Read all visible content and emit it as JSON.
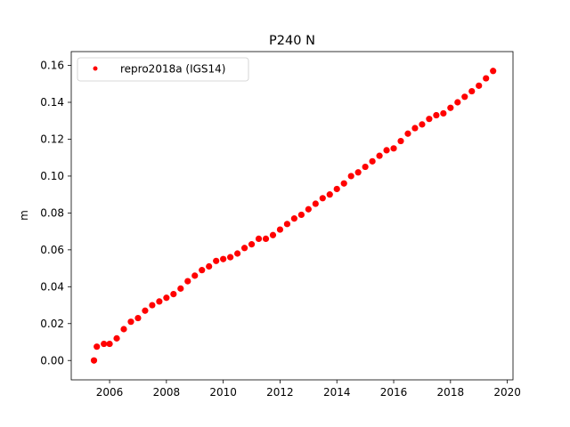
{
  "chart_data": {
    "type": "scatter",
    "title": "P240 N",
    "xlabel": "",
    "ylabel": "m",
    "xlim": [
      2004.65,
      2020.2
    ],
    "ylim": [
      -0.0105,
      0.1675
    ],
    "xticks": [
      2006,
      2008,
      2010,
      2012,
      2014,
      2016,
      2018,
      2020
    ],
    "xtick_labels": [
      "2006",
      "2008",
      "2010",
      "2012",
      "2014",
      "2016",
      "2018",
      "2020"
    ],
    "yticks": [
      0.0,
      0.02,
      0.04,
      0.06,
      0.08,
      0.1,
      0.12,
      0.14,
      0.16
    ],
    "ytick_labels": [
      "0.00",
      "0.02",
      "0.04",
      "0.06",
      "0.08",
      "0.10",
      "0.12",
      "0.14",
      "0.16"
    ],
    "grid": false,
    "legend_position": "top-left",
    "series": [
      {
        "name": "repro2018a (IGS14)",
        "color": "#ff0000",
        "marker": "dot",
        "x": [
          2005.45,
          2005.55,
          2005.8,
          2006.0,
          2006.25,
          2006.5,
          2006.75,
          2007.0,
          2007.25,
          2007.5,
          2007.75,
          2008.0,
          2008.25,
          2008.5,
          2008.75,
          2009.0,
          2009.25,
          2009.5,
          2009.75,
          2010.0,
          2010.25,
          2010.5,
          2010.75,
          2011.0,
          2011.25,
          2011.5,
          2011.75,
          2012.0,
          2012.25,
          2012.5,
          2012.75,
          2013.0,
          2013.25,
          2013.5,
          2013.75,
          2014.0,
          2014.25,
          2014.5,
          2014.75,
          2015.0,
          2015.25,
          2015.5,
          2015.75,
          2016.0,
          2016.25,
          2016.5,
          2016.75,
          2017.0,
          2017.25,
          2017.5,
          2017.75,
          2018.0,
          2018.25,
          2018.5,
          2018.75,
          2019.0,
          2019.25,
          2019.5
        ],
        "y": [
          0.0,
          0.0075,
          0.009,
          0.009,
          0.012,
          0.017,
          0.021,
          0.023,
          0.027,
          0.03,
          0.032,
          0.034,
          0.036,
          0.039,
          0.043,
          0.046,
          0.049,
          0.051,
          0.054,
          0.055,
          0.056,
          0.058,
          0.061,
          0.063,
          0.066,
          0.066,
          0.068,
          0.071,
          0.074,
          0.077,
          0.079,
          0.082,
          0.085,
          0.088,
          0.09,
          0.093,
          0.096,
          0.1,
          0.102,
          0.105,
          0.108,
          0.111,
          0.114,
          0.115,
          0.119,
          0.123,
          0.126,
          0.128,
          0.131,
          0.133,
          0.134,
          0.137,
          0.14,
          0.143,
          0.146,
          0.149,
          0.153,
          0.157
        ]
      }
    ]
  }
}
